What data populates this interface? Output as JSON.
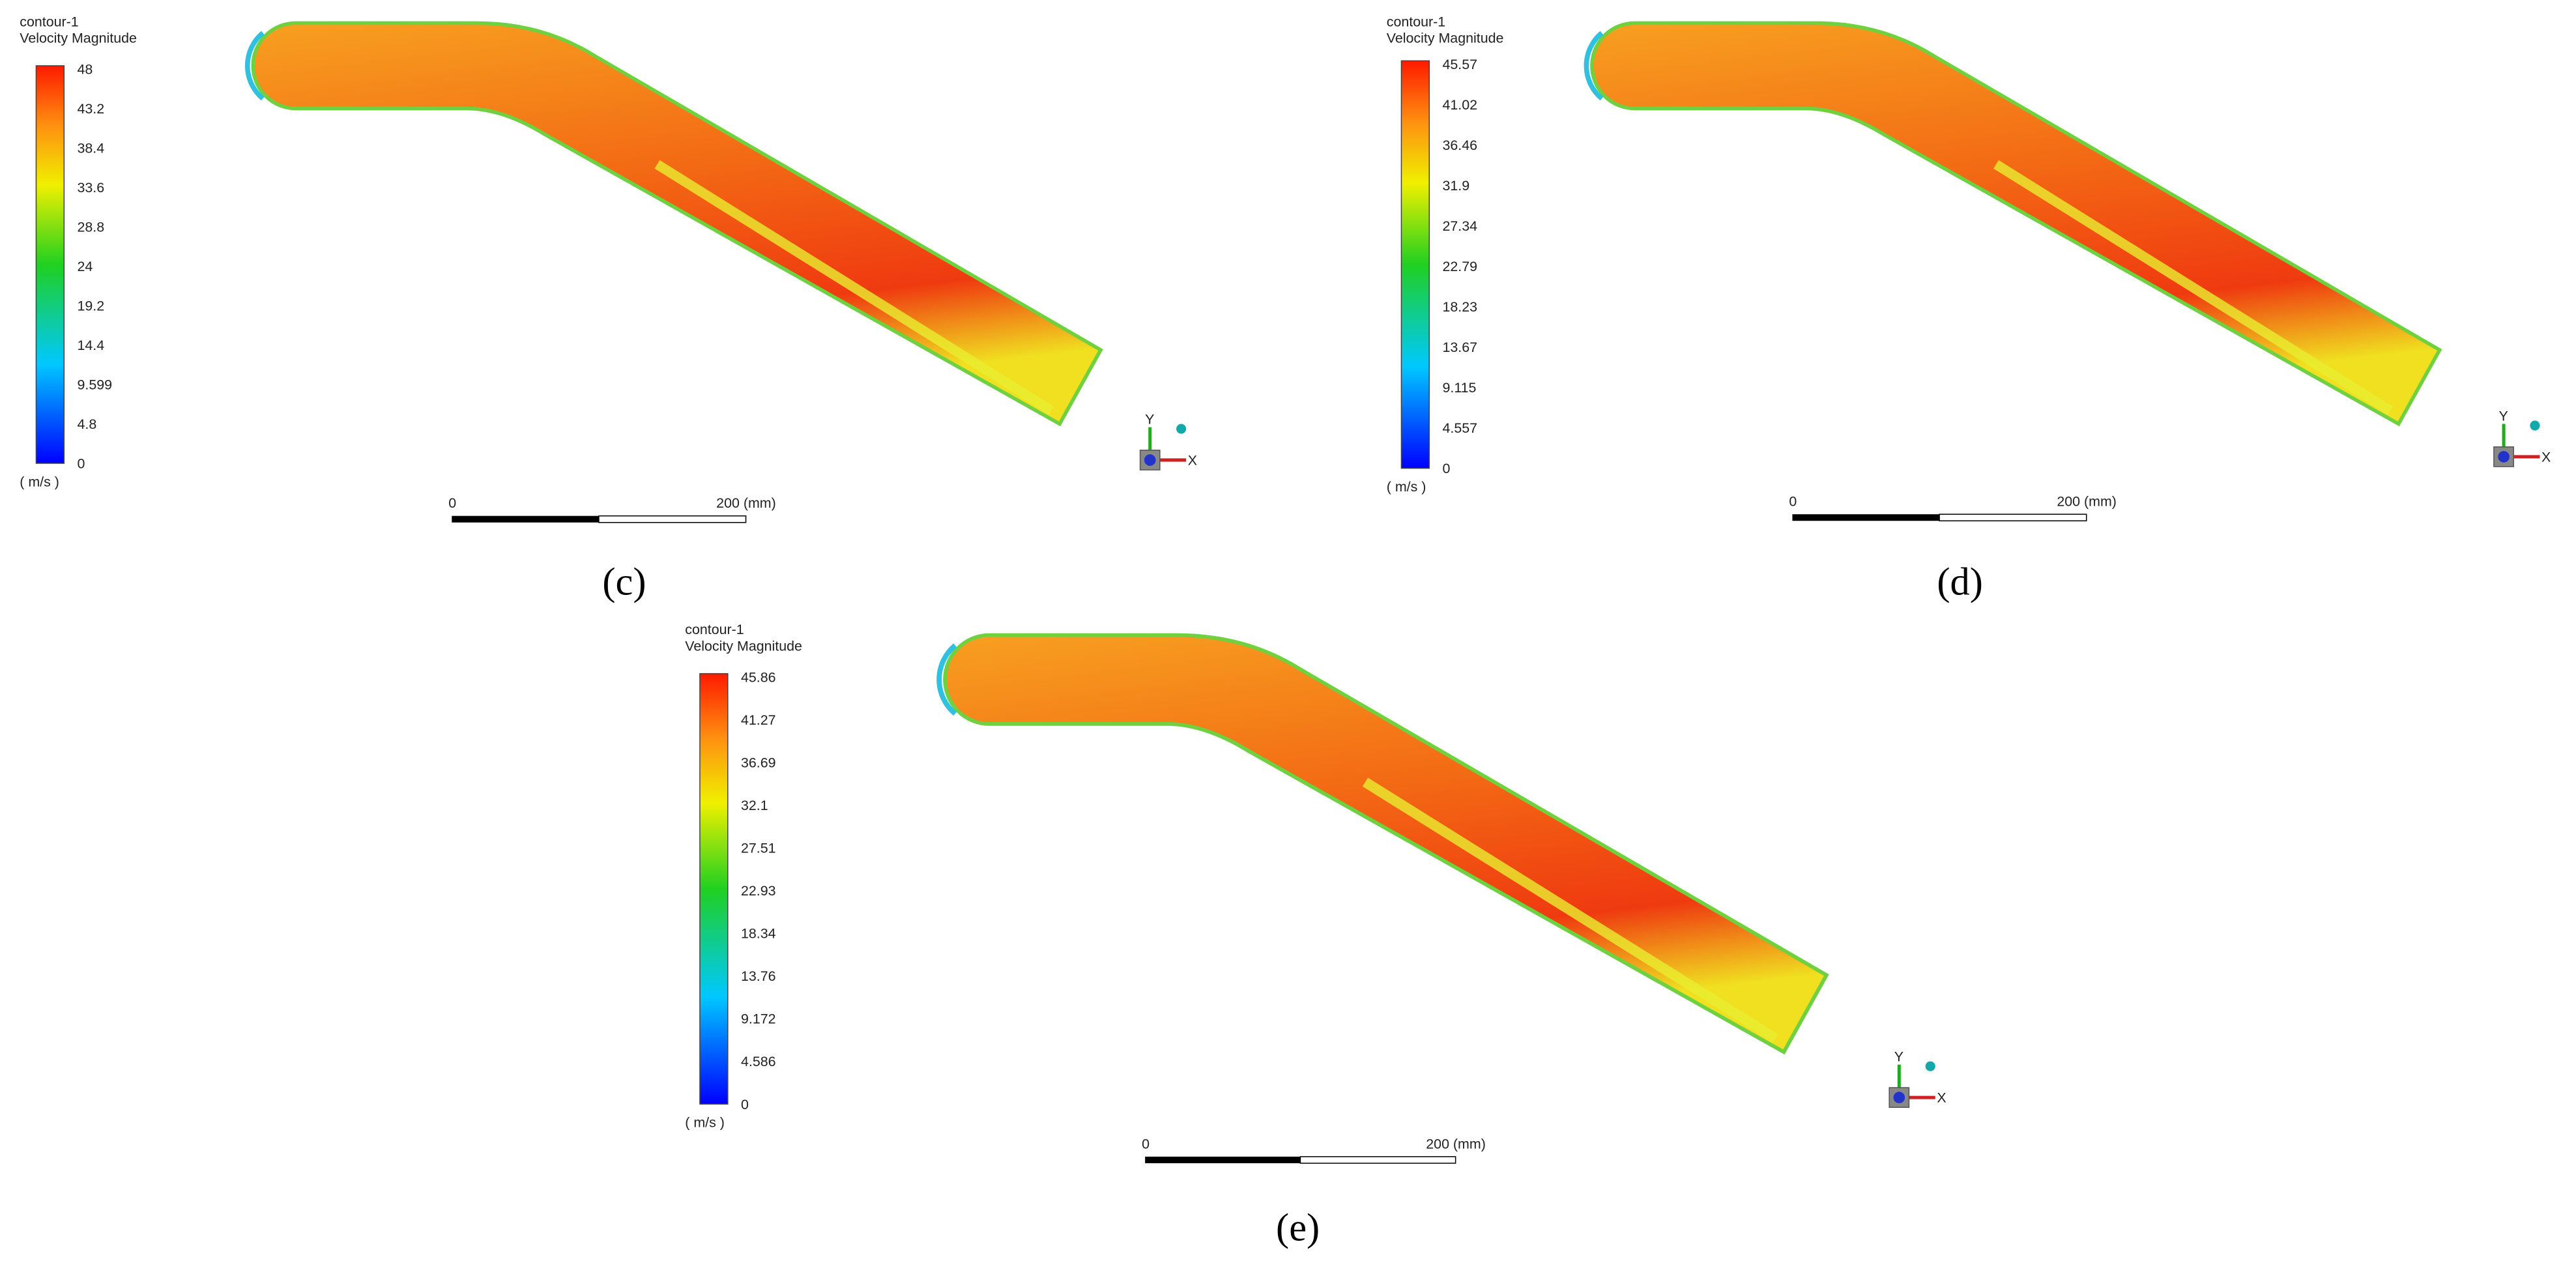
{
  "panels": [
    {
      "legend": {
        "title": "contour-1",
        "variable": "Velocity Magnitude",
        "ticks": [
          "48",
          "43.2",
          "38.4",
          "33.6",
          "28.8",
          "24",
          "19.2",
          "14.4",
          "9.599",
          "4.8",
          "0"
        ],
        "unit": "( m/s )"
      },
      "scale_bar": {
        "start": "0",
        "end": "200 (mm)"
      },
      "axes": {
        "y": "Y",
        "x": "X"
      },
      "caption": "(c)"
    },
    {
      "legend": {
        "title": "contour-1",
        "variable": "Velocity Magnitude",
        "ticks": [
          "45.57",
          "41.02",
          "36.46",
          "31.9",
          "27.34",
          "22.79",
          "18.23",
          "13.67",
          "9.115",
          "4.557",
          "0"
        ],
        "unit": "( m/s )"
      },
      "scale_bar": {
        "start": "0",
        "end": "200 (mm)"
      },
      "axes": {
        "y": "Y",
        "x": "X"
      },
      "caption": "(d)"
    },
    {
      "legend": {
        "title": "contour-1",
        "variable": "Velocity Magnitude",
        "ticks": [
          "45.86",
          "41.27",
          "36.69",
          "32.1",
          "27.51",
          "22.93",
          "18.34",
          "13.76",
          "9.172",
          "4.586",
          "0"
        ],
        "unit": "( m/s )"
      },
      "scale_bar": {
        "start": "0",
        "end": "200 (mm)"
      },
      "axes": {
        "y": "Y",
        "x": "X"
      },
      "caption": "(e)"
    }
  ]
}
